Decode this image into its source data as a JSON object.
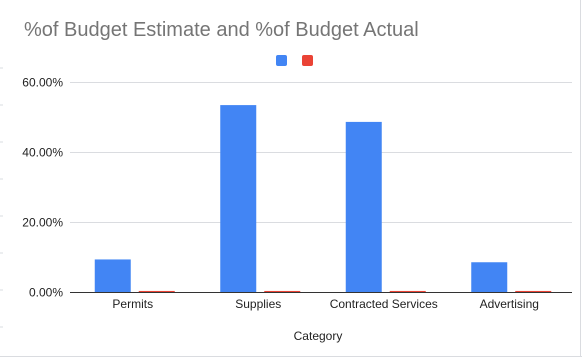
{
  "chart_data": {
    "type": "bar",
    "title": "%of Budget Estimate and %of Budget Actual",
    "xlabel": "Category",
    "ylabel": "",
    "categories": [
      "Permits",
      "Supplies",
      "Contracted Services",
      "Advertising"
    ],
    "series": [
      {
        "color": "#4285f4",
        "values": [
          9.3,
          53.4,
          48.6,
          8.5
        ]
      },
      {
        "color": "#ea4335",
        "values": [
          0.3,
          0.3,
          0.3,
          0.3
        ]
      }
    ],
    "ylim": [
      0,
      60
    ],
    "yticks": [
      0,
      20,
      40,
      60
    ],
    "ytick_labels": [
      "0.00%",
      "20.00%",
      "40.00%",
      "60.00%"
    ],
    "grid": true,
    "legend": "top-center"
  }
}
